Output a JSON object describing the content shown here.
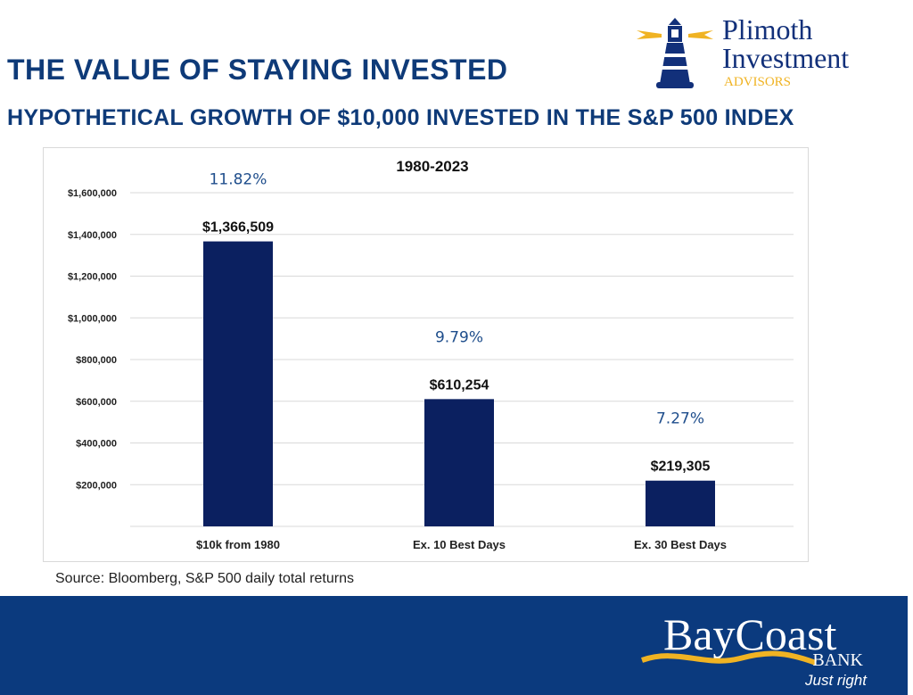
{
  "header": {
    "title": "THE VALUE OF STAYING INVESTED",
    "subtitle": "HYPOTHETICAL GROWTH OF $10,000 INVESTED IN THE S&P 500 INDEX"
  },
  "logos": {
    "top": {
      "line1": "Plimoth",
      "line2": "Investment",
      "line3": "ADVISORS",
      "icon": "lighthouse-icon"
    },
    "footer": {
      "line1": "BayCoast",
      "line2": "BANK",
      "tagline": "Just right"
    }
  },
  "colors": {
    "bar": "#0b2060",
    "percent": "#1f4e8c",
    "brand_blue": "#0b3a7e",
    "gold": "#f0b323"
  },
  "chart_data": {
    "type": "bar",
    "title": "1980-2023",
    "categories": [
      "$10k from 1980",
      "Ex. 10 Best Days",
      "Ex. 30 Best Days"
    ],
    "values": [
      1366509,
      610254,
      219305
    ],
    "value_labels": [
      "$1,366,509",
      "$610,254",
      "$219,305"
    ],
    "annualized_returns": [
      "11.82%",
      "9.79%",
      "7.27%"
    ],
    "yticks": [
      200000,
      400000,
      600000,
      800000,
      1000000,
      1200000,
      1400000,
      1600000
    ],
    "ytick_labels": [
      "$200,000",
      "$400,000",
      "$600,000",
      "$800,000",
      "$1,000,000",
      "$1,200,000",
      "$1,400,000",
      "$1,600,000"
    ],
    "ylim": [
      0,
      1600000
    ],
    "grid": true,
    "xlabel": "",
    "ylabel": ""
  },
  "source": "Source: Bloomberg, S&P 500 daily total returns"
}
